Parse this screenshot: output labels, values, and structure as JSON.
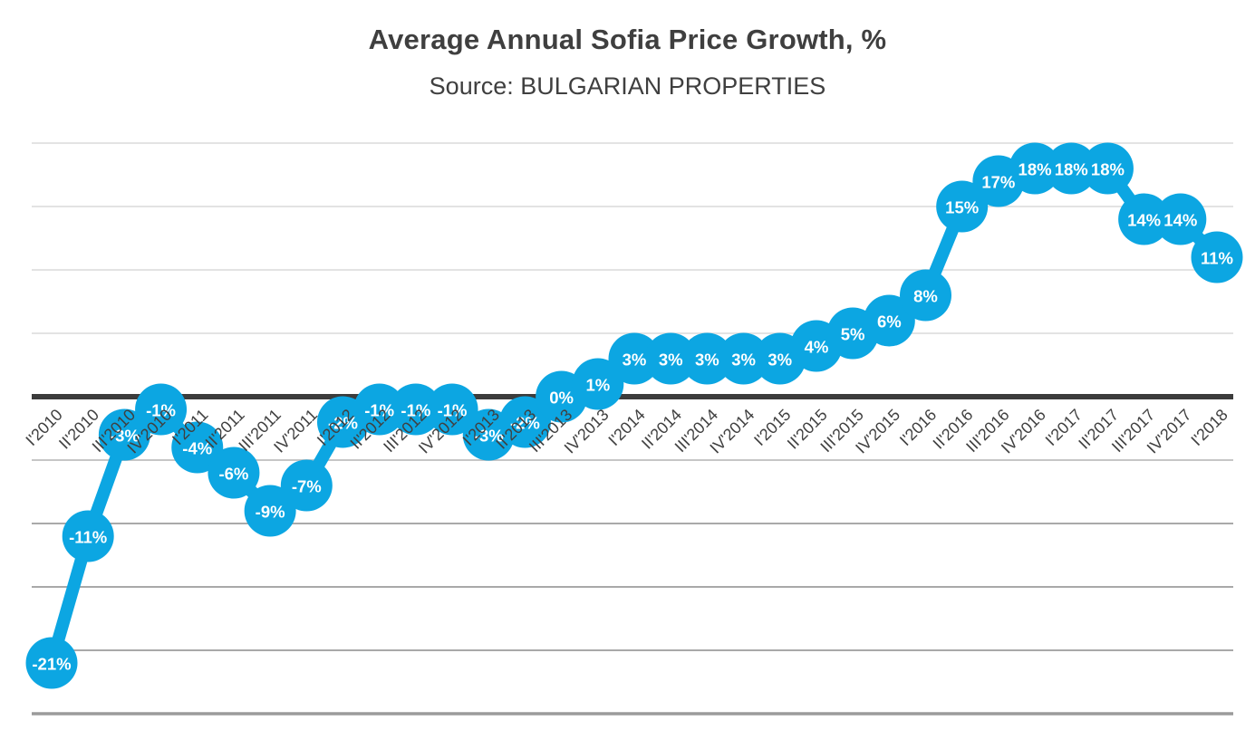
{
  "page": {
    "title": "Average Annual Sofia Price Growth, %",
    "subtitle": "Source: BULGARIAN PROPERTIES"
  },
  "chart_data": {
    "type": "line",
    "title": "Average Annual Sofia Price Growth, %",
    "subtitle": "Source: BULGARIAN PROPERTIES",
    "legend": "none",
    "grid": true,
    "marker": "circle",
    "ylim": [
      -25,
      20
    ],
    "ytick_step": 5,
    "categories": [
      "I'2010",
      "II'2010",
      "III'2010",
      "IV'2010",
      "I'2011",
      "II'2011",
      "III'2011",
      "IV'2011",
      "I'2012",
      "II'2012",
      "III'2012",
      "IV'2012",
      "I'2013",
      "II'2013",
      "III'2013",
      "IV'2013",
      "I'2014",
      "II'2014",
      "III'2014",
      "IV'2014",
      "I'2015",
      "II'2015",
      "III'2015",
      "IV'2015",
      "I'2016",
      "II'2016",
      "III'2016",
      "IV'2016",
      "I'2017",
      "II'2017",
      "III'2017",
      "IV'2017",
      "I'2018"
    ],
    "values": [
      -21,
      -11,
      -3,
      -1,
      -4,
      -6,
      -9,
      -7,
      -2,
      -1,
      -1,
      -1,
      -3,
      -2,
      0,
      1,
      3,
      3,
      3,
      3,
      3,
      4,
      5,
      6,
      8,
      15,
      17,
      18,
      18,
      18,
      14,
      14,
      11
    ],
    "point_labels": [
      "-21%",
      "-11%",
      "-3%",
      "-1%",
      "-4%",
      "-6%",
      "-9%",
      "-7%",
      "-2%",
      "-1%",
      "-1%",
      "-1%",
      "-3%",
      "-2%",
      "0%",
      "1%",
      "3%",
      "3%",
      "3%",
      "3%",
      "3%",
      "4%",
      "5%",
      "6%",
      "8%",
      "15%",
      "17%",
      "18%",
      "18%",
      "18%",
      "14%",
      "14%",
      "11%"
    ],
    "colors": {
      "series": "#0CA6E2",
      "data_label": "#FFFFFF",
      "zero_axis": "#3C3C3C",
      "gridline_above_zero": "#E3E3E3",
      "gridline_minus5": "#C6C6C6",
      "gridline_below_zero": "#A9A9A9",
      "bottom_border": "#9B9B9B",
      "category_label": "#404040",
      "title": "#3F3F3F",
      "background": "#FFFFFF"
    }
  }
}
